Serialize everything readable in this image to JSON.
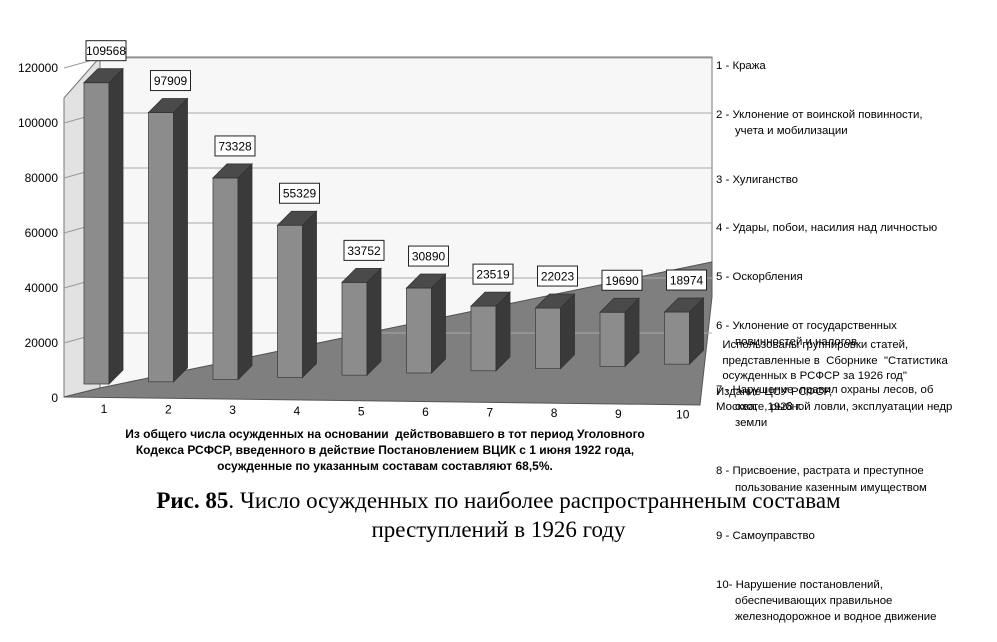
{
  "chart_data": {
    "type": "bar",
    "style": "3d-column",
    "categories": [
      "1",
      "2",
      "3",
      "4",
      "5",
      "6",
      "7",
      "8",
      "9",
      "10"
    ],
    "values": [
      109568,
      97909,
      73328,
      55329,
      33752,
      30890,
      23519,
      22023,
      19690,
      18974
    ],
    "y_ticks": [
      "0",
      "20000",
      "40000",
      "60000",
      "80000",
      "100000",
      "120000"
    ],
    "ylim": [
      0,
      120000
    ],
    "grid": true,
    "legend_position": "right",
    "colors": {
      "bar_front": "#8c8c8c",
      "bar_side": "#3a3a3a",
      "bar_top": "#4a4a4a",
      "floor": "#7f7f7f",
      "walls": "#f7f7f7"
    }
  },
  "legend": [
    "1 - Кража",
    "2 - Уклонение от воинской повинности,\n      учета и мобилизации",
    "3 - Хулиганство",
    "4 - Удары, побои, насилия над личностью",
    "5 - Оскорбления",
    "6 - Уклонение от государственных\n      повинностей и налогов",
    "7 - Нарушение  правил охраны лесов, об\n      охоте, рыбной ловли, эксплуатации недр\n      земли",
    "8 - Присвоение, растрата и преступное\n      пользование казенным имуществом",
    "9 - Самоуправство",
    "10- Нарушение постановлений,\n      обеспечивающих правильное\n      железнодорожное и водное движение"
  ],
  "source_note": "  Использованы группировки статей,\n  представленные в  Сборнике  \"Статистика\n  осужденных в РСФСР за 1926 год\"\nИздание ЦСУ РСФСР,\nМосква,   1928 г.",
  "bottom_note": "Из общего числа осужденных на основании  действовавшего в тот период Уголовного\nКодекса РСФСР, введенного в действие Постановлением ВЦИК с 1 июня 1922 года,\nосужденные по указанным составам составляют 68,5%.",
  "caption": {
    "label": "Рис. 85",
    "text": ". Число осужденных по наиболее распространненым составам\nпреступлений в 1926 году"
  }
}
